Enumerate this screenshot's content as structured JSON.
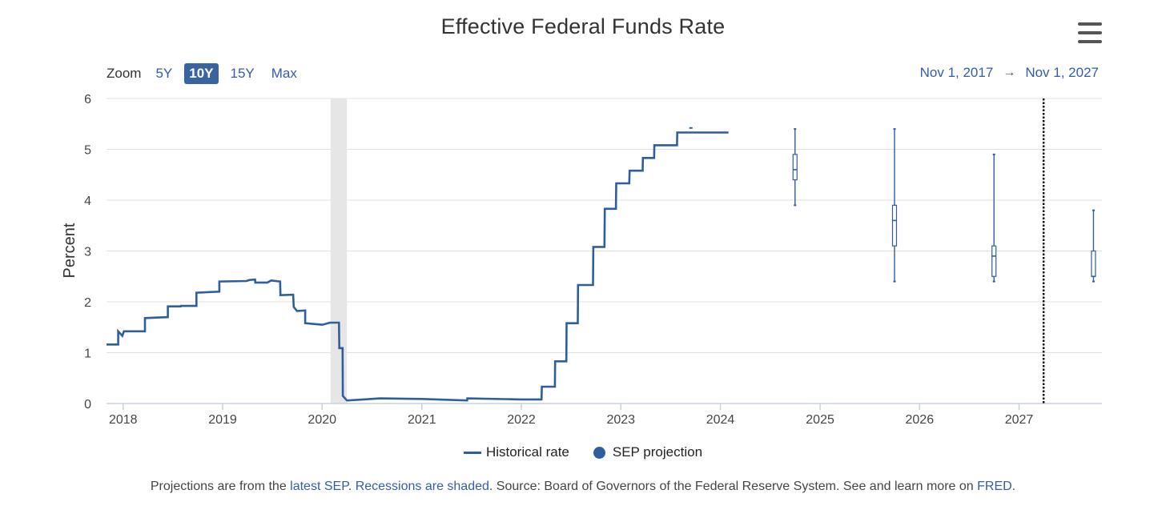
{
  "chart_data": {
    "type": "line",
    "title": "Effective Federal Funds Rate",
    "xlabel": "",
    "ylabel": "Percent",
    "xlim": [
      "2017-11-01",
      "2027-11-01"
    ],
    "ylim": [
      0,
      6
    ],
    "y_ticks": [
      "0",
      "1",
      "2",
      "3",
      "4",
      "5",
      "6"
    ],
    "x_ticks": [
      "2018",
      "2019",
      "2020",
      "2021",
      "2022",
      "2023",
      "2024",
      "2025",
      "2026",
      "2027"
    ],
    "grid": true,
    "legend_position": "bottom-center",
    "recession_shading": [
      [
        "2020-02-01",
        "2020-04-01"
      ]
    ],
    "vertical_marker": "2027-04-01",
    "series": [
      {
        "name": "Historical rate",
        "kind": "step-line",
        "color": "#2f5f9a",
        "points": [
          [
            "2017-11-01",
            1.16
          ],
          [
            "2017-12-14",
            1.16
          ],
          [
            "2017-12-14",
            1.42
          ],
          [
            "2017-12-29",
            1.33
          ],
          [
            "2018-01-04",
            1.42
          ],
          [
            "2018-03-22",
            1.42
          ],
          [
            "2018-03-22",
            1.68
          ],
          [
            "2018-06-14",
            1.7
          ],
          [
            "2018-06-14",
            1.91
          ],
          [
            "2018-07-31",
            1.91
          ],
          [
            "2018-08-01",
            1.92
          ],
          [
            "2018-09-27",
            1.92
          ],
          [
            "2018-09-27",
            2.18
          ],
          [
            "2018-12-20",
            2.2
          ],
          [
            "2018-12-20",
            2.4
          ],
          [
            "2019-03-29",
            2.41
          ],
          [
            "2019-04-10",
            2.43
          ],
          [
            "2019-04-30",
            2.44
          ],
          [
            "2019-05-01",
            2.38
          ],
          [
            "2019-06-14",
            2.38
          ],
          [
            "2019-06-28",
            2.42
          ],
          [
            "2019-07-31",
            2.4
          ],
          [
            "2019-08-01",
            2.13
          ],
          [
            "2019-09-17",
            2.14
          ],
          [
            "2019-09-19",
            1.9
          ],
          [
            "2019-10-01",
            1.82
          ],
          [
            "2019-10-31",
            1.83
          ],
          [
            "2019-10-31",
            1.58
          ],
          [
            "2019-12-31",
            1.55
          ],
          [
            "2020-01-02",
            1.55
          ],
          [
            "2020-01-30",
            1.59
          ],
          [
            "2020-03-03",
            1.59
          ],
          [
            "2020-03-04",
            1.09
          ],
          [
            "2020-03-16",
            1.09
          ],
          [
            "2020-03-17",
            0.15
          ],
          [
            "2020-04-01",
            0.06
          ],
          [
            "2020-06-01",
            0.08
          ],
          [
            "2020-08-01",
            0.1
          ],
          [
            "2021-01-01",
            0.09
          ],
          [
            "2021-06-16",
            0.06
          ],
          [
            "2021-06-17",
            0.1
          ],
          [
            "2021-12-31",
            0.08
          ],
          [
            "2022-03-16",
            0.08
          ],
          [
            "2022-03-17",
            0.33
          ],
          [
            "2022-05-04",
            0.33
          ],
          [
            "2022-05-05",
            0.83
          ],
          [
            "2022-06-15",
            0.83
          ],
          [
            "2022-06-16",
            1.58
          ],
          [
            "2022-07-27",
            1.58
          ],
          [
            "2022-07-28",
            2.33
          ],
          [
            "2022-09-21",
            2.33
          ],
          [
            "2022-09-22",
            3.08
          ],
          [
            "2022-11-02",
            3.08
          ],
          [
            "2022-11-03",
            3.83
          ],
          [
            "2022-12-14",
            3.83
          ],
          [
            "2022-12-15",
            4.33
          ],
          [
            "2023-02-01",
            4.33
          ],
          [
            "2023-02-02",
            4.58
          ],
          [
            "2023-03-22",
            4.58
          ],
          [
            "2023-03-23",
            4.83
          ],
          [
            "2023-05-03",
            4.83
          ],
          [
            "2023-05-04",
            5.08
          ],
          [
            "2023-07-26",
            5.08
          ],
          [
            "2023-07-27",
            5.33
          ],
          [
            "2024-01-31",
            5.33
          ]
        ]
      },
      {
        "name": "SEP projection",
        "kind": "boxplot",
        "color": "#2f5f9a",
        "points": [
          {
            "x": "2024-10-01",
            "low": 3.9,
            "q1": 4.4,
            "median": 4.6,
            "q3": 4.9,
            "high": 5.4
          },
          {
            "x": "2025-10-01",
            "low": 2.4,
            "q1": 3.1,
            "median": 3.6,
            "q3": 3.9,
            "high": 5.4
          },
          {
            "x": "2026-10-01",
            "low": 2.4,
            "q1": 2.5,
            "median": 2.9,
            "q3": 3.1,
            "high": 4.9
          },
          {
            "x": "2027-10-01",
            "low": 2.4,
            "q1": 2.5,
            "median": 2.5,
            "q3": 3.0,
            "high": 3.8
          }
        ]
      }
    ]
  },
  "toolbar": {
    "zoom_label": "Zoom",
    "zoom_options": [
      "5Y",
      "10Y",
      "15Y",
      "Max"
    ],
    "zoom_selected": "10Y",
    "range_from": "Nov 1, 2017",
    "range_arrow": "→",
    "range_to": "Nov 1, 2027",
    "menu_icon": "hamburger-menu-icon"
  },
  "footnote": {
    "part1": "Projections are from the ",
    "link1": "latest SEP",
    "part2": ". ",
    "link2": "Recessions are shaded",
    "part3": ". Source: Board of Governors of the Federal Reserve System. See and learn more on ",
    "link3": "FRED",
    "part4": "."
  },
  "colors": {
    "series": "#2f5f9a",
    "link": "#335cad",
    "recession": "#e6e6e6",
    "grid": "#e0e0e0",
    "zoom_active": "#3a64a0"
  }
}
